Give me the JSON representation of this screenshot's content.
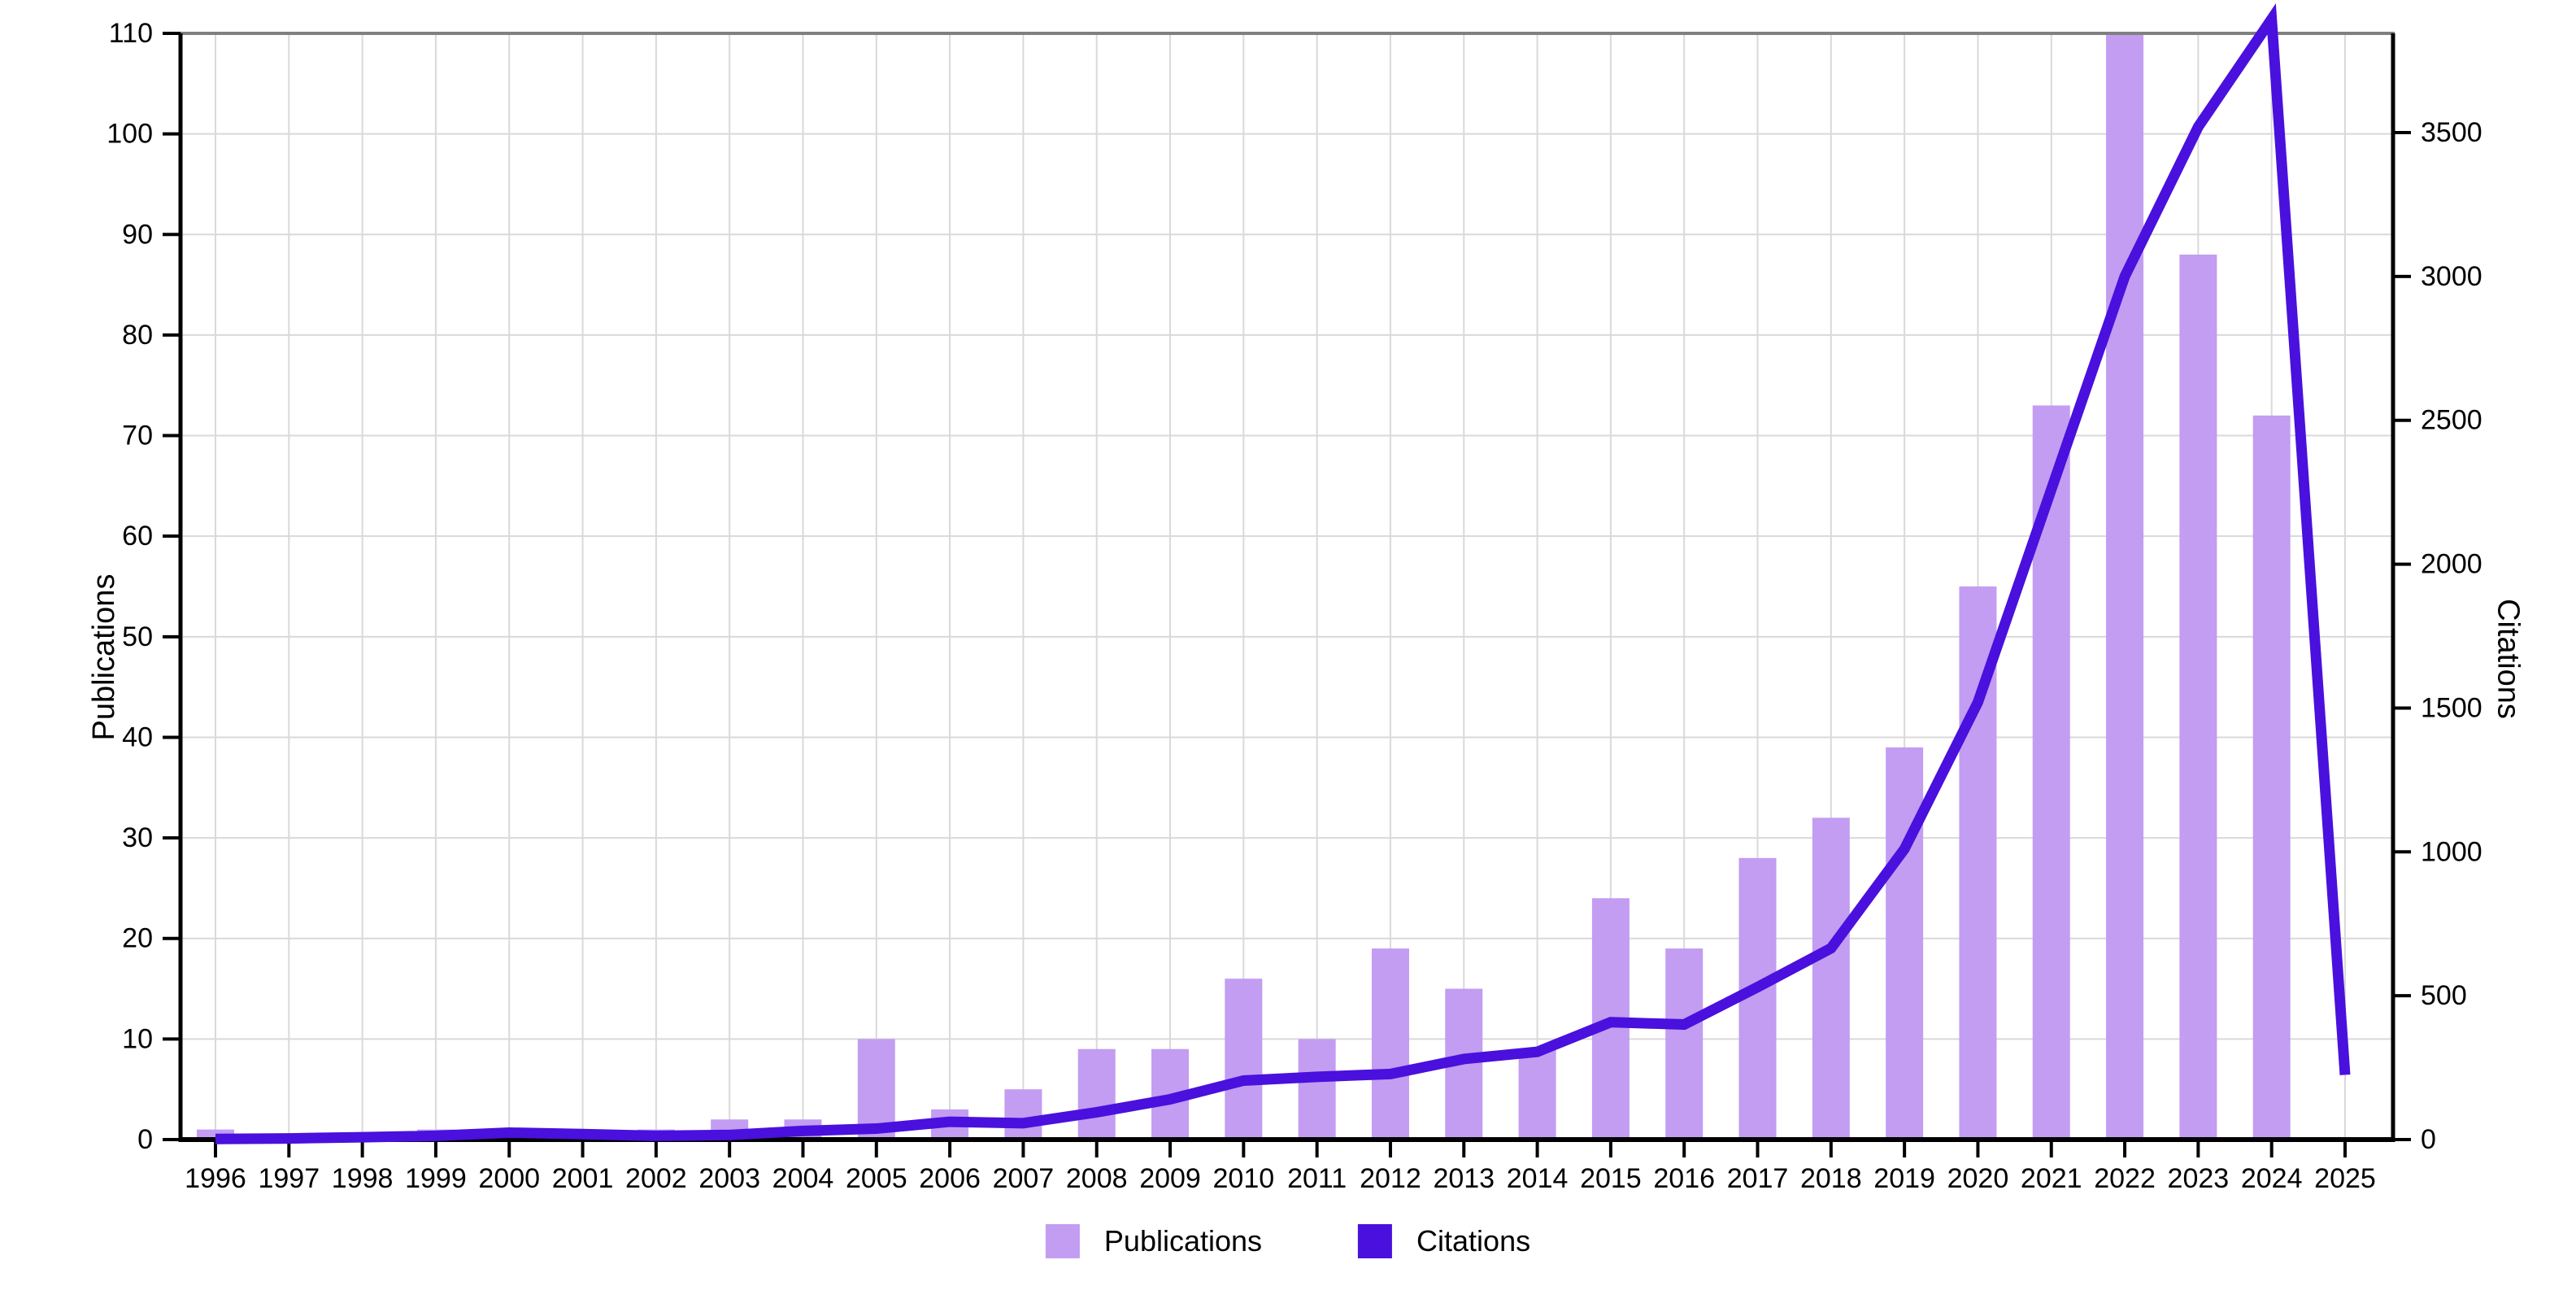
{
  "chart_data": {
    "type": "bar+line dual-axis",
    "categories": [
      "1996",
      "1997",
      "1998",
      "1999",
      "2000",
      "2001",
      "2002",
      "2003",
      "2004",
      "2005",
      "2006",
      "2007",
      "2008",
      "2009",
      "2010",
      "2011",
      "2012",
      "2013",
      "2014",
      "2015",
      "2016",
      "2017",
      "2018",
      "2019",
      "2020",
      "2021",
      "2022",
      "2023",
      "2024",
      "2025"
    ],
    "series": [
      {
        "name": "Publications",
        "type": "bar",
        "axis": "left",
        "color": "#c29df2",
        "values": [
          1,
          0,
          0,
          1,
          1,
          1,
          1,
          2,
          2,
          10,
          3,
          5,
          9,
          9,
          16,
          10,
          19,
          15,
          9,
          24,
          19,
          28,
          32,
          39,
          55,
          73,
          110,
          88,
          72,
          0
        ]
      },
      {
        "name": "Citations",
        "type": "line",
        "axis": "right",
        "color": "#4a10dd",
        "values": [
          2,
          4,
          8,
          13,
          24,
          19,
          13,
          16,
          30,
          38,
          62,
          57,
          95,
          140,
          205,
          218,
          228,
          280,
          305,
          408,
          400,
          530,
          665,
          1010,
          1520,
          2260,
          3000,
          3520,
          3895,
          225
        ]
      }
    ],
    "left_axis": {
      "label": "Publications",
      "min": 0,
      "max": 110,
      "ticks": [
        0,
        10,
        20,
        30,
        40,
        50,
        60,
        70,
        80,
        90,
        100,
        110
      ]
    },
    "right_axis": {
      "label": "Citations",
      "min": 0,
      "max": 3845,
      "ticks": [
        0,
        500,
        1000,
        1500,
        2000,
        2500,
        3000,
        3500
      ]
    },
    "grid": true,
    "legend_position": "bottom",
    "colors": {
      "grid": "#d9d9d9",
      "axis": "#000000",
      "top_border": "#808080",
      "bar": "#c29df2",
      "line": "#4a10dd",
      "text": "#000000"
    }
  },
  "legend": {
    "items": [
      {
        "label": "Publications",
        "color": "#c29df2"
      },
      {
        "label": "Citations",
        "color": "#4a10dd"
      }
    ]
  }
}
